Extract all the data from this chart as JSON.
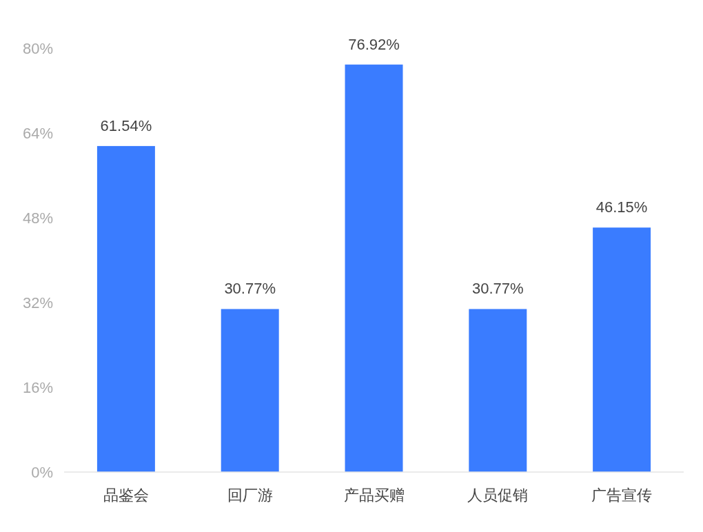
{
  "chart_data": {
    "type": "bar",
    "categories": [
      "品鉴会",
      "回厂游",
      "产品买赠",
      "人员促销",
      "广告宣传"
    ],
    "values": [
      61.54,
      30.77,
      76.92,
      30.77,
      46.15
    ],
    "value_labels": [
      "61.54%",
      "30.77%",
      "76.92%",
      "30.77%",
      "46.15%"
    ],
    "color": "#3a7cff",
    "ylim": [
      0,
      80
    ],
    "yticks": [
      {
        "value": 0,
        "label": "0%"
      },
      {
        "value": 16,
        "label": "16%"
      },
      {
        "value": 32,
        "label": "32%"
      },
      {
        "value": 48,
        "label": "48%"
      },
      {
        "value": 64,
        "label": "64%"
      },
      {
        "value": 80,
        "label": "80%"
      }
    ]
  }
}
